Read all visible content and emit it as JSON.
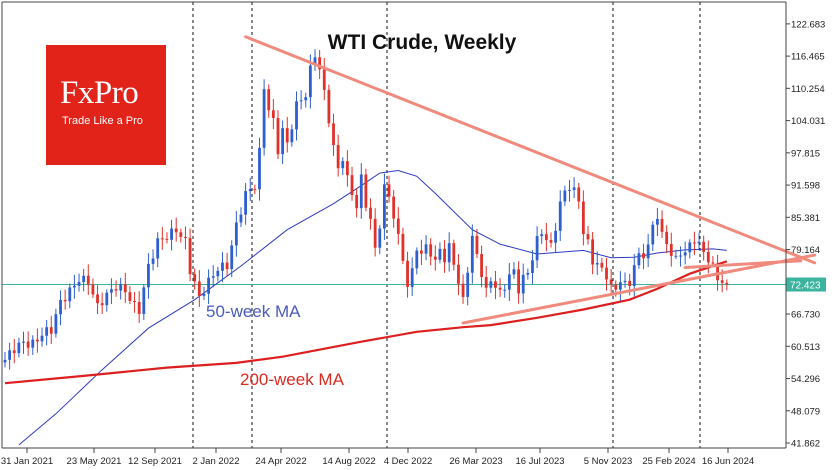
{
  "chart_data": {
    "type": "candlestick",
    "title": "WTI Crude, Weekly",
    "timeframe": "Weekly",
    "x_labels": [
      "31 Jan 2021",
      "23 May 2021",
      "12 Sep 2021",
      "2 Jan 2022",
      "24 Apr 2022",
      "14 Aug 2022",
      "4 Dec 2022",
      "26 Mar 2023",
      "16 Jul 2023",
      "5 Nov 2023",
      "25 Feb 2024",
      "16 Jun 2024"
    ],
    "y_ticks": [
      "122.683",
      "116.465",
      "110.254",
      "104.031",
      "97.815",
      "91.598",
      "85.381",
      "79.164",
      "72.423",
      "66.730",
      "60.513",
      "54.296",
      "48.079",
      "41.862"
    ],
    "ylim": [
      40.9,
      126.9
    ],
    "current_price": 72.423,
    "period_separators": [
      "2 Jan 2022",
      "24 Apr 2022",
      "4 Dec 2022",
      "5 Nov 2023",
      "16 Jun 2024"
    ],
    "price_path": [
      [
        0,
        57.4
      ],
      [
        2,
        59.9
      ],
      [
        4,
        61.6
      ],
      [
        6,
        61.4
      ],
      [
        8,
        62.9
      ],
      [
        10,
        63.3
      ],
      [
        12,
        68.6
      ],
      [
        14,
        71.3
      ],
      [
        16,
        74.0
      ],
      [
        18,
        73.3
      ],
      [
        20,
        67.8
      ],
      [
        22,
        69.9
      ],
      [
        24,
        72.0
      ],
      [
        26,
        71.7
      ],
      [
        28,
        68.6
      ],
      [
        29,
        67.7
      ],
      [
        31,
        75.5
      ],
      [
        33,
        80.2
      ],
      [
        35,
        81.7
      ],
      [
        37,
        83.5
      ],
      [
        39,
        81.0
      ],
      [
        40,
        75.4
      ],
      [
        42,
        69.5
      ],
      [
        44,
        72.5
      ],
      [
        46,
        75.6
      ],
      [
        48,
        76.6
      ],
      [
        50,
        84.1
      ],
      [
        52,
        89.6
      ],
      [
        54,
        91.0
      ],
      [
        55,
        97.5
      ],
      [
        56,
        110.4
      ],
      [
        57,
        106.4
      ],
      [
        58,
        104.1
      ],
      [
        59,
        98.9
      ],
      [
        60,
        102.7
      ],
      [
        61,
        99.7
      ],
      [
        63,
        106.7
      ],
      [
        65,
        108.6
      ],
      [
        66,
        113.4
      ],
      [
        67,
        116.8
      ],
      [
        68,
        114.1
      ],
      [
        69,
        109.7
      ],
      [
        70,
        104.9
      ],
      [
        71,
        99.2
      ],
      [
        72,
        94.9
      ],
      [
        73,
        96.9
      ],
      [
        74,
        92.3
      ],
      [
        75,
        89.6
      ],
      [
        76,
        87.0
      ],
      [
        77,
        92.5
      ],
      [
        78,
        88.0
      ],
      [
        79,
        85.1
      ],
      [
        80,
        79.5
      ],
      [
        81,
        84.6
      ],
      [
        82,
        91.4
      ],
      [
        83,
        89.6
      ],
      [
        84,
        85.6
      ],
      [
        85,
        80.9
      ],
      [
        86,
        77.1
      ],
      [
        87,
        71.6
      ],
      [
        88,
        74.6
      ],
      [
        89,
        79.9
      ],
      [
        90,
        78.2
      ],
      [
        91,
        80.4
      ],
      [
        92,
        79.1
      ],
      [
        93,
        76.7
      ],
      [
        94,
        79.7
      ],
      [
        95,
        76.9
      ],
      [
        96,
        79.1
      ],
      [
        97,
        76.5
      ],
      [
        98,
        72.0
      ],
      [
        99,
        69.3
      ],
      [
        100,
        75.7
      ],
      [
        101,
        81.5
      ],
      [
        102,
        78.8
      ],
      [
        103,
        75.0
      ],
      [
        104,
        71.2
      ],
      [
        105,
        73.6
      ],
      [
        106,
        71.7
      ],
      [
        107,
        70.2
      ],
      [
        108,
        71.8
      ],
      [
        109,
        73.6
      ],
      [
        110,
        74.9
      ],
      [
        111,
        71.7
      ],
      [
        112,
        73.9
      ],
      [
        113,
        75.4
      ],
      [
        114,
        78.0
      ],
      [
        115,
        81.1
      ],
      [
        116,
        82.8
      ],
      [
        117,
        80.6
      ],
      [
        118,
        79.4
      ],
      [
        119,
        83.2
      ],
      [
        120,
        87.5
      ],
      [
        121,
        90.4
      ],
      [
        122,
        91.6
      ],
      [
        123,
        90.7
      ],
      [
        124,
        89.4
      ],
      [
        125,
        82.8
      ],
      [
        126,
        80.5
      ],
      [
        127,
        77.0
      ],
      [
        128,
        75.9
      ],
      [
        129,
        74.8
      ],
      [
        130,
        73.8
      ],
      [
        131,
        71.4
      ],
      [
        132,
        71.6
      ],
      [
        133,
        73.7
      ],
      [
        134,
        72.7
      ],
      [
        135,
        73.3
      ],
      [
        136,
        76.5
      ],
      [
        137,
        77.9
      ],
      [
        138,
        78.2
      ],
      [
        139,
        79.2
      ],
      [
        140,
        83.3
      ],
      [
        141,
        85.4
      ],
      [
        142,
        81.5
      ],
      [
        143,
        80.7
      ],
      [
        144,
        78.6
      ],
      [
        145,
        77.6
      ],
      [
        146,
        79.3
      ],
      [
        147,
        78.7
      ],
      [
        148,
        80.1
      ],
      [
        149,
        81.0
      ],
      [
        150,
        79.5
      ],
      [
        151,
        78.3
      ],
      [
        152,
        76.9
      ],
      [
        153,
        75.4
      ],
      [
        154,
        74.0
      ],
      [
        155,
        73.2
      ],
      [
        156,
        72.4
      ]
    ],
    "series": [
      {
        "name": "50-week MA",
        "color": "#2a3bbf",
        "points": [
          [
            3,
            41.5
          ],
          [
            11,
            47.5
          ],
          [
            21,
            56.0
          ],
          [
            31,
            64.0
          ],
          [
            41,
            69.5
          ],
          [
            51,
            76.0
          ],
          [
            61,
            83.0
          ],
          [
            71,
            88.0
          ],
          [
            77,
            91.5
          ],
          [
            81,
            93.9
          ],
          [
            85,
            94.4
          ],
          [
            89,
            93.3
          ],
          [
            93,
            90.0
          ],
          [
            101,
            83.0
          ],
          [
            107,
            80.2
          ],
          [
            115,
            78.3
          ],
          [
            125,
            79.0
          ],
          [
            131,
            77.6
          ],
          [
            136,
            77.7
          ],
          [
            141,
            78.5
          ],
          [
            147,
            79.1
          ],
          [
            153,
            79.3
          ],
          [
            156,
            79.0
          ]
        ]
      },
      {
        "name": "200-week MA",
        "color": "#dd1f1f",
        "points": [
          [
            0,
            53.4
          ],
          [
            17,
            54.8
          ],
          [
            35,
            56.4
          ],
          [
            50,
            57.3
          ],
          [
            60,
            58.5
          ],
          [
            77,
            61.4
          ],
          [
            89,
            63.3
          ],
          [
            99,
            64.2
          ],
          [
            105,
            64.6
          ],
          [
            115,
            66.0
          ],
          [
            125,
            67.6
          ],
          [
            135,
            69.5
          ],
          [
            141,
            71.6
          ],
          [
            148,
            74.5
          ],
          [
            156,
            76.9
          ]
        ]
      }
    ],
    "trendlines": [
      {
        "name": "descending-resistance",
        "from": [
          52,
          120.2
        ],
        "to": [
          175,
          76.6
        ]
      },
      {
        "name": "ascending-support",
        "from": [
          99,
          65.0
        ],
        "to": [
          175,
          78.1
        ]
      },
      {
        "name": "apex-leg",
        "from": [
          147,
          75.7
        ],
        "to": [
          172,
          77.0
        ]
      }
    ],
    "annotations": [
      {
        "name": "ma50-label",
        "text": "50-week MA",
        "color": "#4a5bbd"
      },
      {
        "name": "ma200-label",
        "text": "200-week MA",
        "color": "#d92a22"
      }
    ],
    "colors": {
      "bull": "#2e5fd0",
      "bear": "#e0312b",
      "trend": "#f08a7c",
      "current_price": "#3ab39f",
      "grid": "#111111",
      "axis": "#444444"
    }
  },
  "logo": {
    "name": "FxPro",
    "tagline": "Trade Like a Pro",
    "color": "#e2231a"
  }
}
